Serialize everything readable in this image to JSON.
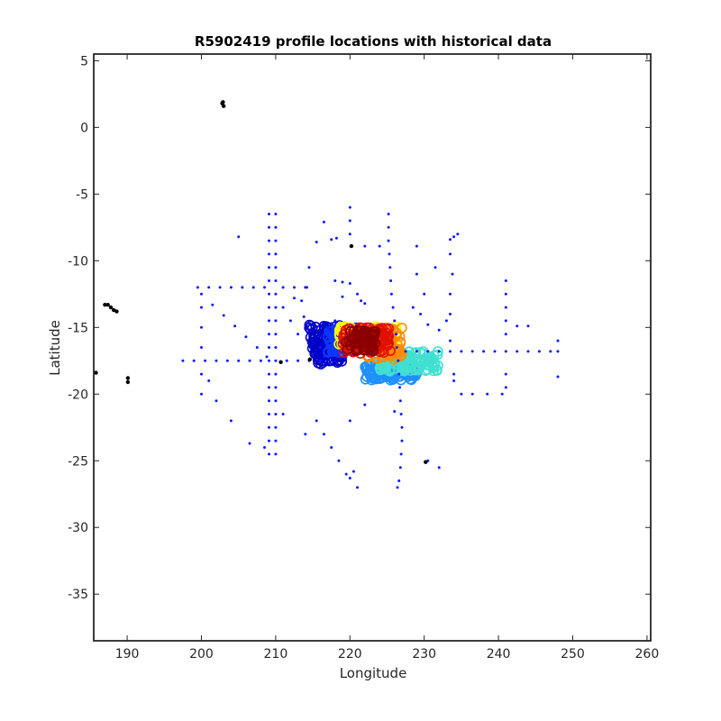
{
  "chart_data": {
    "type": "scatter",
    "title": "R5902419 profile locations with historical data",
    "xlabel": "Longitude",
    "ylabel": "Latitude",
    "xlim": [
      185.5,
      260.5
    ],
    "ylim": [
      -38.5,
      5.5
    ],
    "xticks": [
      "190",
      "200",
      "210",
      "220",
      "230",
      "240",
      "250",
      "260"
    ],
    "yticks": [
      "5",
      "0",
      "-5",
      "-10",
      "-15",
      "-20",
      "-25",
      "-30",
      "-35"
    ],
    "grid": false,
    "legend": "none",
    "colors": {
      "historical": "#0a1aff",
      "land": "#000000",
      "float_colormap": [
        "#0000c8",
        "#0a38ff",
        "#1e90ff",
        "#40e0d0",
        "#ffff00",
        "#ff8c00",
        "#e01000",
        "#8b0000"
      ]
    },
    "series": [
      {
        "role": "historical",
        "points": [
          [
            209.1,
            -6.5
          ],
          [
            209.1,
            -7.5
          ],
          [
            209.1,
            -8.5
          ],
          [
            209.1,
            -9.5
          ],
          [
            209.1,
            -10.5
          ],
          [
            209.1,
            -11.5
          ],
          [
            209.1,
            -12.5
          ],
          [
            209.1,
            -13.5
          ],
          [
            209.1,
            -14.5
          ],
          [
            209.1,
            -15.5
          ],
          [
            209.1,
            -16.5
          ],
          [
            209.1,
            -17.5
          ],
          [
            209.1,
            -18.5
          ],
          [
            209.1,
            -19.5
          ],
          [
            209.1,
            -20.5
          ],
          [
            209.1,
            -21.5
          ],
          [
            209.1,
            -22.5
          ],
          [
            209.1,
            -23.5
          ],
          [
            209.1,
            -24.5
          ],
          [
            210.0,
            -6.5
          ],
          [
            210.0,
            -7.5
          ],
          [
            210.0,
            -8.5
          ],
          [
            210.0,
            -9.5
          ],
          [
            210.0,
            -10.5
          ],
          [
            210.0,
            -11.5
          ],
          [
            210.0,
            -12.5
          ],
          [
            210.0,
            -13.5
          ],
          [
            210.0,
            -14.5
          ],
          [
            210.0,
            -15.5
          ],
          [
            210.0,
            -16.5
          ],
          [
            210.0,
            -17.5
          ],
          [
            210.0,
            -18.5
          ],
          [
            210.0,
            -19.5
          ],
          [
            210.0,
            -20.5
          ],
          [
            210.0,
            -21.5
          ],
          [
            210.0,
            -22.5
          ],
          [
            210.0,
            -23.5
          ],
          [
            210.0,
            -24.5
          ],
          [
            197.5,
            -17.5
          ],
          [
            199,
            -17.5
          ],
          [
            200.5,
            -17.5
          ],
          [
            202,
            -17.5
          ],
          [
            203.5,
            -17.5
          ],
          [
            205,
            -17.5
          ],
          [
            206.5,
            -17.5
          ],
          [
            208,
            -17.5
          ],
          [
            211.5,
            -17.5
          ],
          [
            213,
            -17.5
          ],
          [
            214.5,
            -17.5
          ],
          [
            216,
            -17.5
          ],
          [
            199.5,
            -12.0
          ],
          [
            201,
            -12.0
          ],
          [
            202.5,
            -12.0
          ],
          [
            204,
            -12.0
          ],
          [
            205.5,
            -12.0
          ],
          [
            207,
            -12.0
          ],
          [
            208.5,
            -12.0
          ],
          [
            211,
            -12.0
          ],
          [
            212.5,
            -12.0
          ],
          [
            214,
            -12.0
          ],
          [
            200,
            -12.5
          ],
          [
            201.5,
            -13.3
          ],
          [
            203,
            -14.1
          ],
          [
            204.5,
            -14.9
          ],
          [
            206,
            -15.7
          ],
          [
            207.5,
            -16.5
          ],
          [
            208.8,
            -17.2
          ],
          [
            200,
            -13.5
          ],
          [
            200,
            -15
          ],
          [
            200,
            -16.5
          ],
          [
            200,
            -18.5
          ],
          [
            200,
            -20
          ],
          [
            201,
            -19
          ],
          [
            202,
            -20.5
          ],
          [
            204,
            -22
          ],
          [
            211,
            -13.5
          ],
          [
            212,
            -14.5
          ],
          [
            213,
            -15.5
          ],
          [
            212.5,
            -12.8
          ],
          [
            213.5,
            -13
          ],
          [
            214.5,
            -10.5
          ],
          [
            214.2,
            -12
          ],
          [
            213.8,
            -14.2
          ],
          [
            205,
            -8.2
          ],
          [
            216.5,
            -7.1
          ],
          [
            215.5,
            -8.6
          ],
          [
            217.5,
            -8.4
          ],
          [
            218.2,
            -8.3
          ],
          [
            220,
            -6.0
          ],
          [
            220,
            -7.0
          ],
          [
            220,
            -8.0
          ],
          [
            218,
            -11.5
          ],
          [
            219,
            -11.6
          ],
          [
            220,
            -11.7
          ],
          [
            221,
            -12.5
          ],
          [
            219,
            -12.7
          ],
          [
            221.5,
            -13.0
          ],
          [
            222,
            -13.2
          ],
          [
            225.2,
            -6.5
          ],
          [
            225.2,
            -7.5
          ],
          [
            225.2,
            -8.5
          ],
          [
            225.3,
            -9.5
          ],
          [
            225.4,
            -10.5
          ],
          [
            225.5,
            -11.5
          ],
          [
            225.6,
            -12.5
          ],
          [
            225.8,
            -13.5
          ],
          [
            226,
            -14.5
          ],
          [
            226.2,
            -15.5
          ],
          [
            226.3,
            -16.5
          ],
          [
            226.5,
            -17.5
          ],
          [
            226.6,
            -18.5
          ],
          [
            226.7,
            -19.5
          ],
          [
            226.8,
            -20.5
          ],
          [
            226.9,
            -21.5
          ],
          [
            227.0,
            -22.5
          ],
          [
            227.0,
            -23.5
          ],
          [
            226.9,
            -24.5
          ],
          [
            226.8,
            -25.5
          ],
          [
            226.6,
            -26.5
          ],
          [
            226.4,
            -27.0
          ],
          [
            222,
            -8.9
          ],
          [
            224,
            -8.9
          ],
          [
            229,
            -8.9
          ],
          [
            229,
            -11
          ],
          [
            231.5,
            -10.5
          ],
          [
            230,
            -12.5
          ],
          [
            228.5,
            -13.5
          ],
          [
            229.5,
            -14
          ],
          [
            230.5,
            -14.8
          ],
          [
            232,
            -15.2
          ],
          [
            233,
            -14.5
          ],
          [
            233.5,
            -8.4
          ],
          [
            234,
            -8.2
          ],
          [
            234.5,
            -8.0
          ],
          [
            233.5,
            -9.5
          ],
          [
            233.8,
            -11
          ],
          [
            233.5,
            -12.5
          ],
          [
            233.5,
            -14
          ],
          [
            233.5,
            -16
          ],
          [
            227.5,
            -16.8
          ],
          [
            229,
            -16.8
          ],
          [
            230.5,
            -16.8
          ],
          [
            232,
            -16.8
          ],
          [
            233.5,
            -16.8
          ],
          [
            235,
            -16.8
          ],
          [
            236.5,
            -16.8
          ],
          [
            238,
            -16.8
          ],
          [
            239.5,
            -16.8
          ],
          [
            241,
            -16.8
          ],
          [
            242.5,
            -16.8
          ],
          [
            244,
            -16.8
          ],
          [
            245.5,
            -16.8
          ],
          [
            247,
            -16.8
          ],
          [
            248,
            -16.8
          ],
          [
            241,
            -11.5
          ],
          [
            241,
            -12.5
          ],
          [
            241,
            -13.5
          ],
          [
            241,
            -14.5
          ],
          [
            241,
            -15.5
          ],
          [
            241,
            -18.5
          ],
          [
            241,
            -19.5
          ],
          [
            242.5,
            -14.9
          ],
          [
            244,
            -14.9
          ],
          [
            248,
            -16
          ],
          [
            248,
            -18.7
          ],
          [
            234,
            -19
          ],
          [
            235,
            -20
          ],
          [
            236.5,
            -20
          ],
          [
            238.5,
            -20
          ],
          [
            240.5,
            -20
          ],
          [
            234,
            -18.5
          ],
          [
            222,
            -20.8
          ],
          [
            226,
            -21.3
          ],
          [
            232,
            -25.5
          ],
          [
            230.5,
            -25
          ],
          [
            215.5,
            -22
          ],
          [
            216.5,
            -23
          ],
          [
            217.5,
            -24
          ],
          [
            218.5,
            -25
          ],
          [
            219.5,
            -26
          ],
          [
            220,
            -26.3
          ],
          [
            221,
            -27
          ],
          [
            220.5,
            -25.8
          ],
          [
            211,
            -21.5
          ],
          [
            214,
            -23
          ],
          [
            220,
            -22
          ],
          [
            206.5,
            -23.7
          ],
          [
            208.5,
            -24
          ],
          [
            217,
            -15
          ],
          [
            217.5,
            -14.7
          ],
          [
            218,
            -14.5
          ],
          [
            216.5,
            -17.2
          ],
          [
            216,
            -16.5
          ]
        ]
      },
      {
        "role": "land",
        "points": [
          [
            202.8,
            1.8
          ],
          [
            203.0,
            1.6
          ],
          [
            202.9,
            1.9
          ],
          [
            187.0,
            -13.3
          ],
          [
            187.4,
            -13.3
          ],
          [
            187.8,
            -13.5
          ],
          [
            188.2,
            -13.7
          ],
          [
            188.6,
            -13.8
          ],
          [
            185.8,
            -18.4
          ],
          [
            190.1,
            -18.8
          ],
          [
            190.1,
            -19.1
          ],
          [
            220.2,
            -8.9
          ],
          [
            210.7,
            -17.6
          ],
          [
            214.6,
            -17.4
          ],
          [
            230.2,
            -25.1
          ]
        ]
      }
    ],
    "float_clusters": [
      {
        "color_index": 0,
        "lon": [
          214.5,
          219.5
        ],
        "lat": [
          -17.8,
          -14.8
        ],
        "count": 110
      },
      {
        "color_index": 1,
        "lon": [
          217.0,
          221.0
        ],
        "lat": [
          -17.0,
          -15.0
        ],
        "count": 60
      },
      {
        "color_index": 2,
        "lon": [
          222.0,
          229.0
        ],
        "lat": [
          -19.0,
          -17.6
        ],
        "count": 120
      },
      {
        "color_index": 3,
        "lon": [
          224.0,
          232.0
        ],
        "lat": [
          -18.3,
          -16.8
        ],
        "count": 130
      },
      {
        "color_index": 4,
        "lon": [
          218.5,
          226.5
        ],
        "lat": [
          -16.5,
          -14.9
        ],
        "count": 110
      },
      {
        "color_index": 5,
        "lon": [
          222.0,
          227.0
        ],
        "lat": [
          -17.4,
          -15.0
        ],
        "count": 90
      },
      {
        "color_index": 6,
        "lon": [
          219.0,
          225.5
        ],
        "lat": [
          -17.0,
          -15.0
        ],
        "count": 100
      },
      {
        "color_index": 7,
        "lon": [
          219.5,
          223.5
        ],
        "lat": [
          -16.8,
          -15.2
        ],
        "count": 60
      }
    ]
  }
}
